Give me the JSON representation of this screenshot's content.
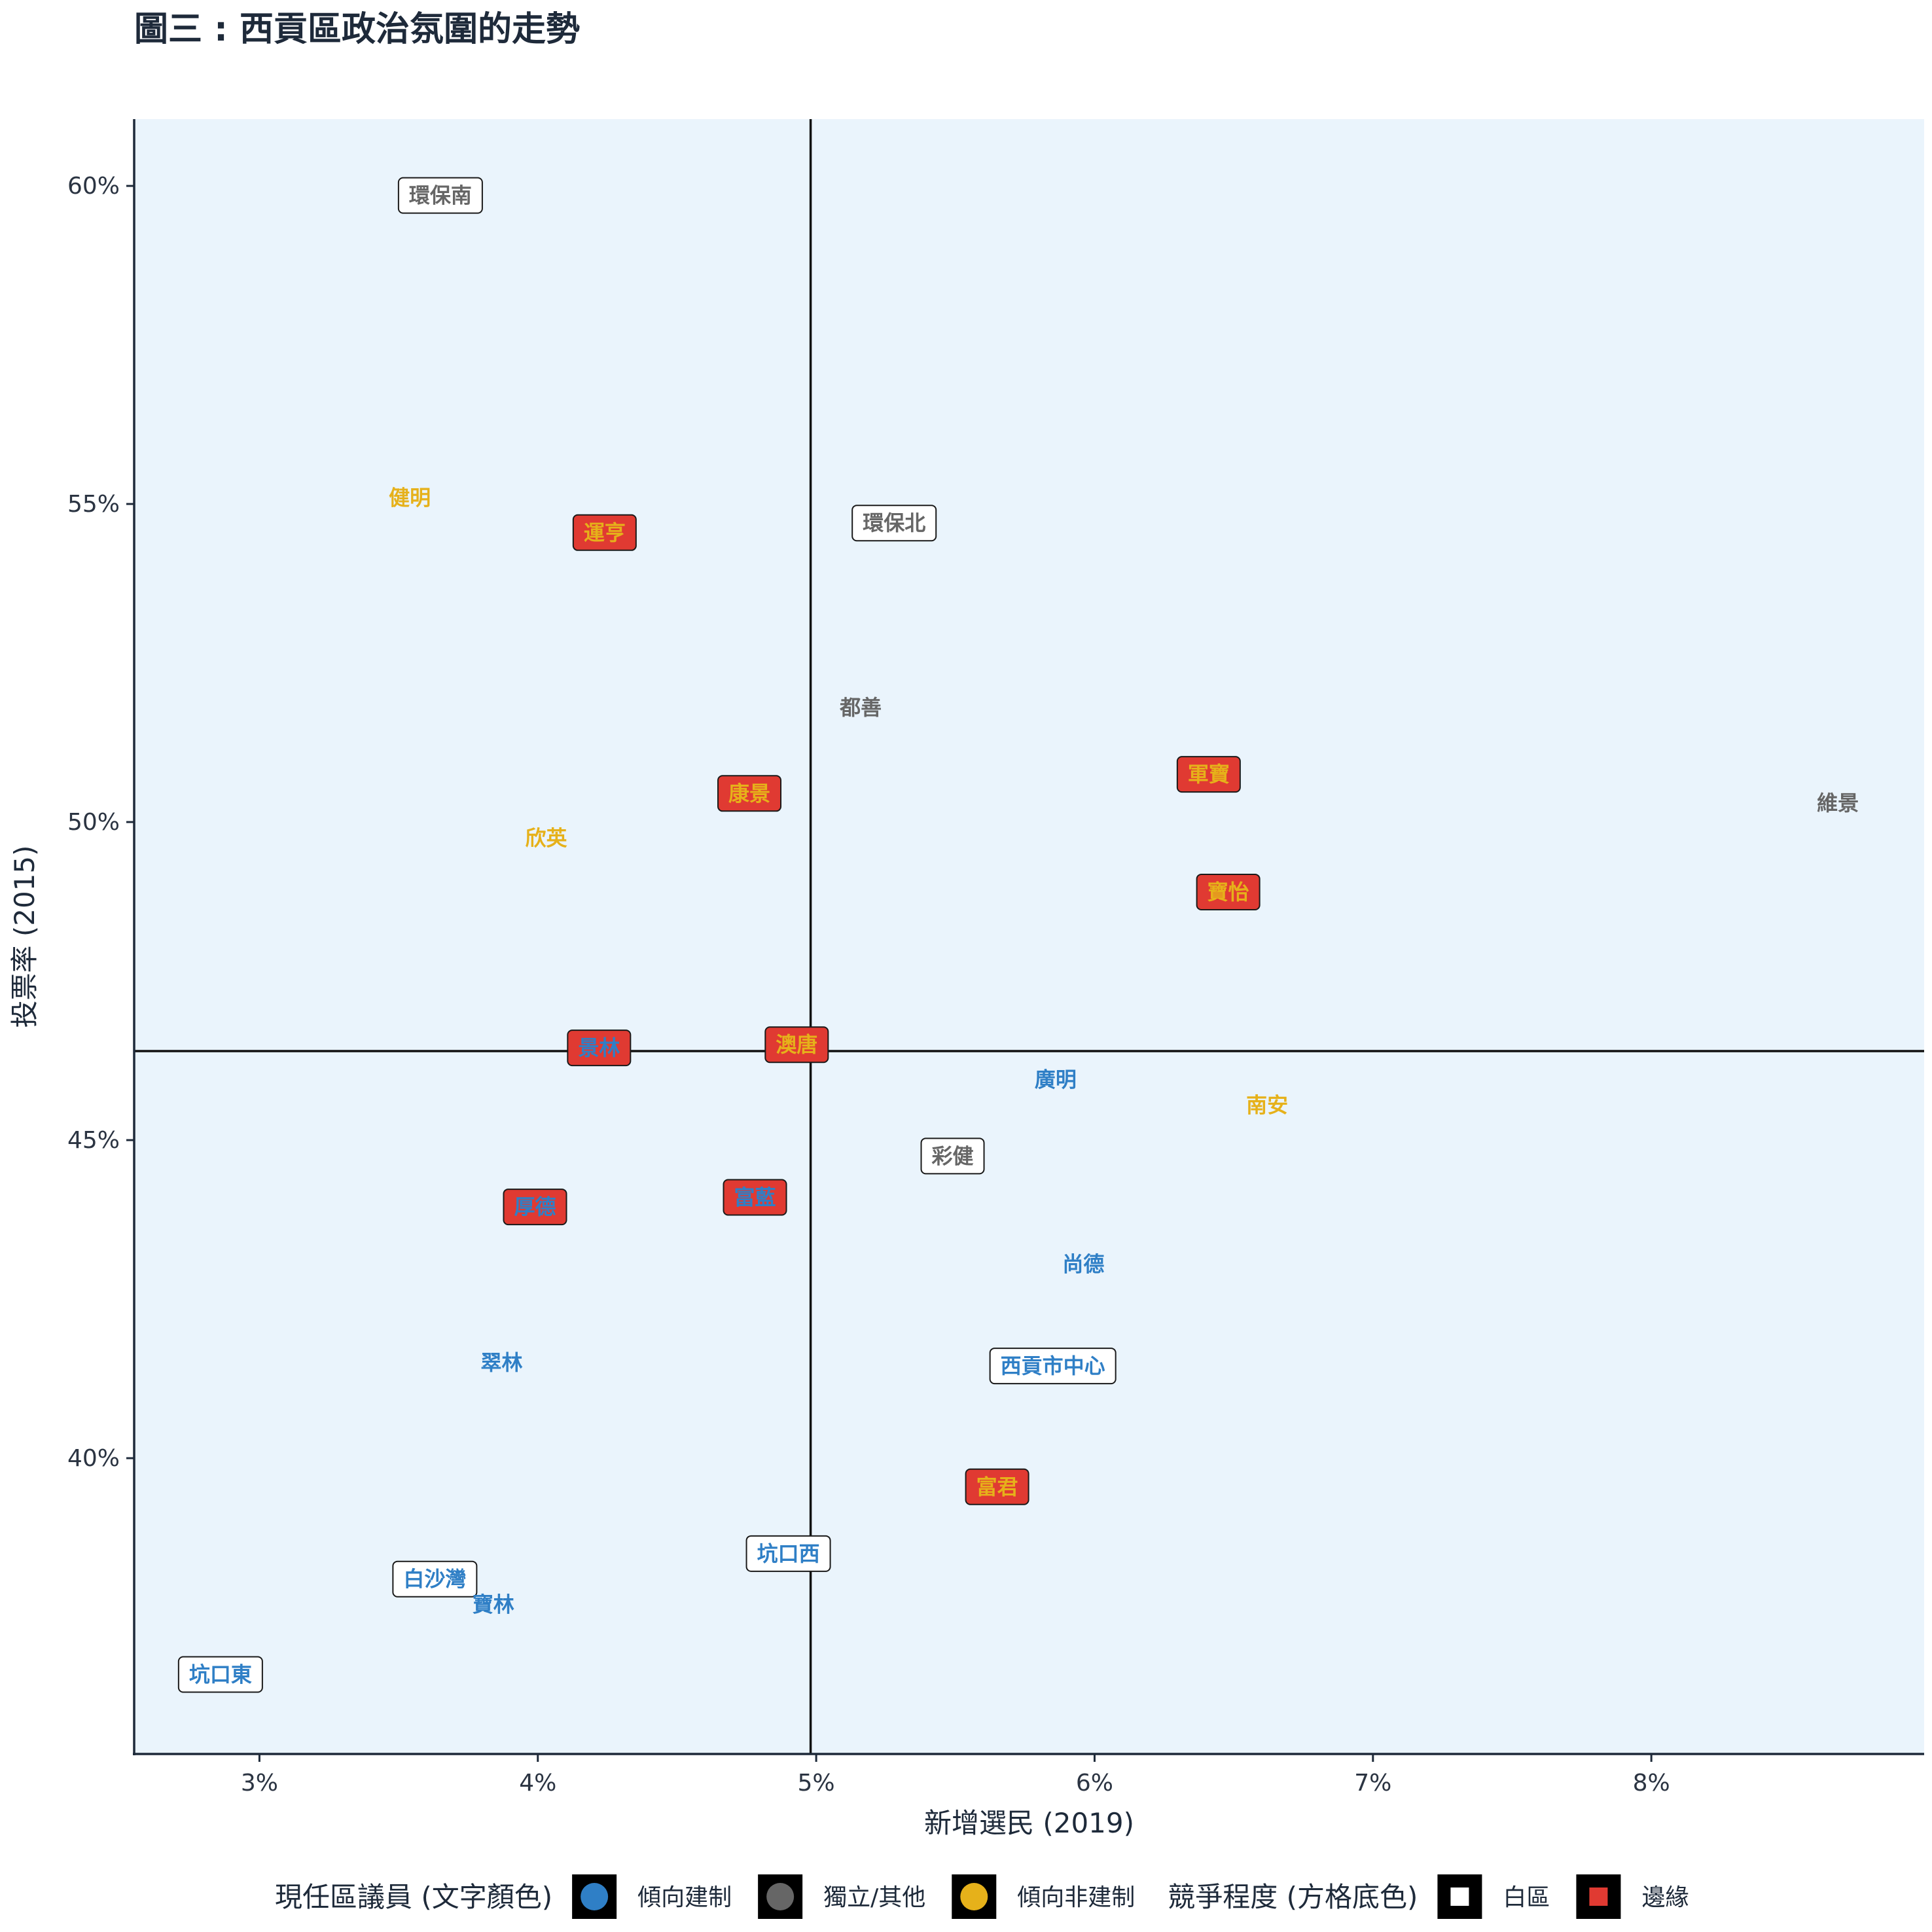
{
  "chart_data": {
    "type": "scatter",
    "title": "圖三 : 西貢區政治氛圍的走勢",
    "xlabel": "新增選民 (2019)",
    "ylabel": "投票率 (2015)",
    "xlim": [
      2.55,
      8.98
    ],
    "ylim": [
      35.35,
      61.05
    ],
    "x_ticks": [
      3,
      4,
      5,
      6,
      7,
      8
    ],
    "x_tick_labels": [
      "3%",
      "4%",
      "5%",
      "6%",
      "7%",
      "8%"
    ],
    "y_ticks": [
      40,
      45,
      50,
      55,
      60
    ],
    "y_tick_labels": [
      "40%",
      "45%",
      "50%",
      "55%",
      "60%"
    ],
    "reference_lines": {
      "x": 4.98,
      "y": 46.4
    },
    "grid": false,
    "legend_position": "bottom",
    "colors": {
      "panel_bg": "#eaf4fc",
      "pro_establishment": "#2f7fc6",
      "independent_other": "#666666",
      "non_establishment": "#e6b11a",
      "white_zone_fill": "#ffffff",
      "marginal_fill": "#e03a32"
    },
    "points": [
      {
        "label": "環保南",
        "x": 3.65,
        "y": 59.85,
        "incumbent": "independent",
        "competition": "white"
      },
      {
        "label": "健明",
        "x": 3.54,
        "y": 55.1,
        "incumbent": "non_establishment",
        "competition": "none"
      },
      {
        "label": "運亨",
        "x": 4.24,
        "y": 54.55,
        "incumbent": "non_establishment",
        "competition": "marginal"
      },
      {
        "label": "環保北",
        "x": 5.28,
        "y": 54.7,
        "incumbent": "independent",
        "competition": "white"
      },
      {
        "label": "都善",
        "x": 5.16,
        "y": 51.8,
        "incumbent": "independent",
        "competition": "none"
      },
      {
        "label": "康景",
        "x": 4.76,
        "y": 50.45,
        "incumbent": "non_establishment",
        "competition": "marginal"
      },
      {
        "label": "欣英",
        "x": 4.03,
        "y": 49.75,
        "incumbent": "non_establishment",
        "competition": "none"
      },
      {
        "label": "軍寶",
        "x": 6.41,
        "y": 50.75,
        "incumbent": "non_establishment",
        "competition": "marginal"
      },
      {
        "label": "維景",
        "x": 8.67,
        "y": 50.3,
        "incumbent": "independent",
        "competition": "none"
      },
      {
        "label": "寶怡",
        "x": 6.48,
        "y": 48.9,
        "incumbent": "non_establishment",
        "competition": "marginal"
      },
      {
        "label": "景林",
        "x": 4.22,
        "y": 46.45,
        "incumbent": "pro_establishment",
        "competition": "marginal"
      },
      {
        "label": "澳唐",
        "x": 4.93,
        "y": 46.5,
        "incumbent": "non_establishment",
        "competition": "marginal"
      },
      {
        "label": "廣明",
        "x": 5.86,
        "y": 45.95,
        "incumbent": "pro_establishment",
        "competition": "none"
      },
      {
        "label": "南安",
        "x": 6.62,
        "y": 45.55,
        "incumbent": "non_establishment",
        "competition": "none"
      },
      {
        "label": "彩健",
        "x": 5.49,
        "y": 44.75,
        "incumbent": "independent",
        "competition": "white"
      },
      {
        "label": "富藍",
        "x": 4.78,
        "y": 44.1,
        "incumbent": "pro_establishment",
        "competition": "marginal"
      },
      {
        "label": "厚德",
        "x": 3.99,
        "y": 43.95,
        "incumbent": "pro_establishment",
        "competition": "marginal"
      },
      {
        "label": "尚德",
        "x": 5.96,
        "y": 43.05,
        "incumbent": "pro_establishment",
        "competition": "none"
      },
      {
        "label": "翠林",
        "x": 3.87,
        "y": 41.5,
        "incumbent": "pro_establishment",
        "competition": "none"
      },
      {
        "label": "西貢市中心",
        "x": 5.85,
        "y": 41.45,
        "incumbent": "pro_establishment",
        "competition": "white"
      },
      {
        "label": "富君",
        "x": 5.65,
        "y": 39.55,
        "incumbent": "non_establishment",
        "competition": "marginal"
      },
      {
        "label": "坑口西",
        "x": 4.9,
        "y": 38.5,
        "incumbent": "pro_establishment",
        "competition": "white"
      },
      {
        "label": "白沙灣",
        "x": 3.63,
        "y": 38.1,
        "incumbent": "pro_establishment",
        "competition": "white"
      },
      {
        "label": "寶林",
        "x": 3.84,
        "y": 37.7,
        "incumbent": "pro_establishment",
        "competition": "none"
      },
      {
        "label": "坑口東",
        "x": 2.86,
        "y": 36.6,
        "incumbent": "pro_establishment",
        "competition": "white"
      }
    ],
    "legend": {
      "incumbent_title": "現任區議員 (文字顏色)",
      "incumbent_items": [
        {
          "label": "傾向建制",
          "color": "#2f7fc6"
        },
        {
          "label": "獨立/其他",
          "color": "#666666"
        },
        {
          "label": "傾向非建制",
          "color": "#e6b11a"
        }
      ],
      "competition_title": "競爭程度 (方格底色)",
      "competition_items": [
        {
          "label": "白區",
          "color": "#ffffff"
        },
        {
          "label": "邊緣",
          "color": "#e03a32"
        }
      ]
    }
  }
}
